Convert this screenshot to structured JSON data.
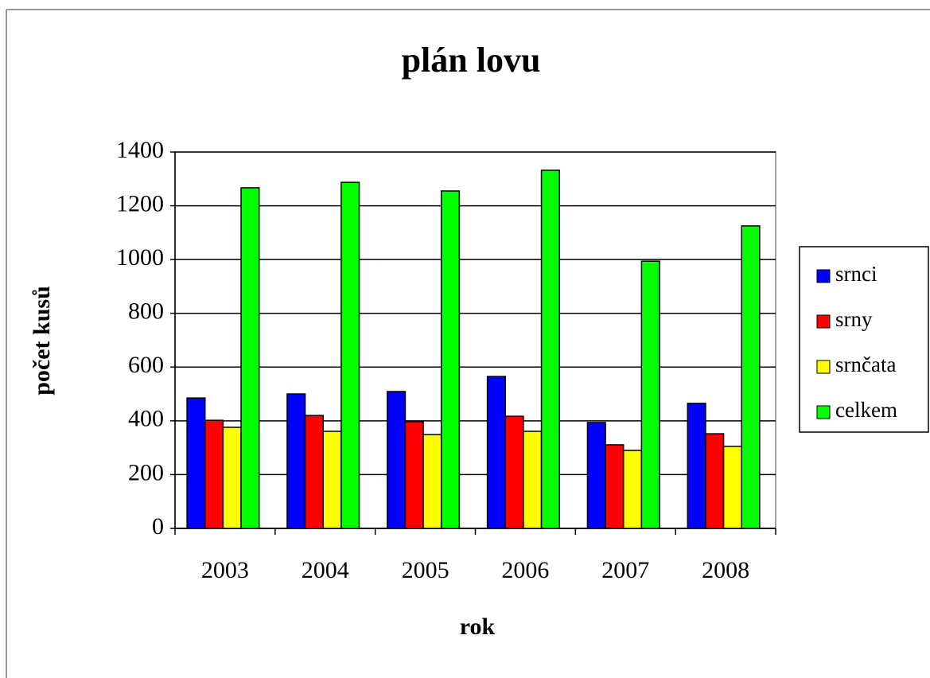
{
  "chart_data": {
    "type": "bar",
    "title": "plán lovu",
    "x_label": "rok",
    "y_label": "počet kusů",
    "categories": [
      "2003",
      "2004",
      "2005",
      "2006",
      "2007",
      "2008"
    ],
    "series": [
      {
        "name": "srnci",
        "color": "#0000ff",
        "values": [
          485,
          500,
          509,
          565,
          394,
          465
        ]
      },
      {
        "name": "srny",
        "color": "#ff0000",
        "values": [
          402,
          420,
          397,
          417,
          311,
          352
        ]
      },
      {
        "name": "srnčata",
        "color": "#ffff00",
        "values": [
          376,
          361,
          349,
          361,
          290,
          305
        ]
      },
      {
        "name": "celkem",
        "color": "#00ff00",
        "values": [
          1267,
          1287,
          1255,
          1332,
          994,
          1125
        ]
      }
    ],
    "ylim": [
      0,
      1400
    ],
    "yticks": [
      0,
      200,
      400,
      600,
      800,
      1000,
      1200,
      1400
    ],
    "grid": true,
    "legend": "right"
  }
}
